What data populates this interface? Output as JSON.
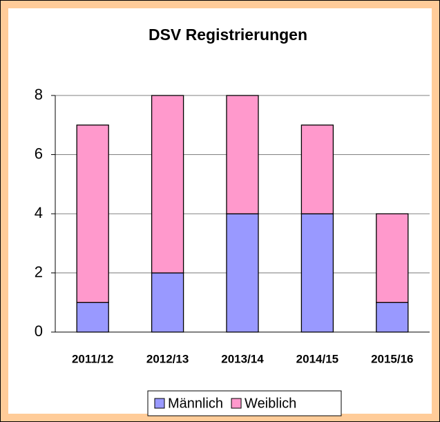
{
  "chart_data": {
    "type": "stacked_bar",
    "title": "DSV Registrierungen",
    "categories": [
      "2011/12",
      "2012/13",
      "2013/14",
      "2014/15",
      "2015/16"
    ],
    "series": [
      {
        "name": "Männlich",
        "color": "#9999ff",
        "values": [
          1,
          2,
          4,
          4,
          1
        ]
      },
      {
        "name": "Weiblich",
        "color": "#ff99cc",
        "values": [
          6,
          6,
          4,
          3,
          3
        ]
      }
    ],
    "ylim": [
      0,
      8
    ],
    "yticks": [
      0,
      2,
      4,
      6,
      8
    ],
    "grid": true,
    "legend": "bottom"
  }
}
